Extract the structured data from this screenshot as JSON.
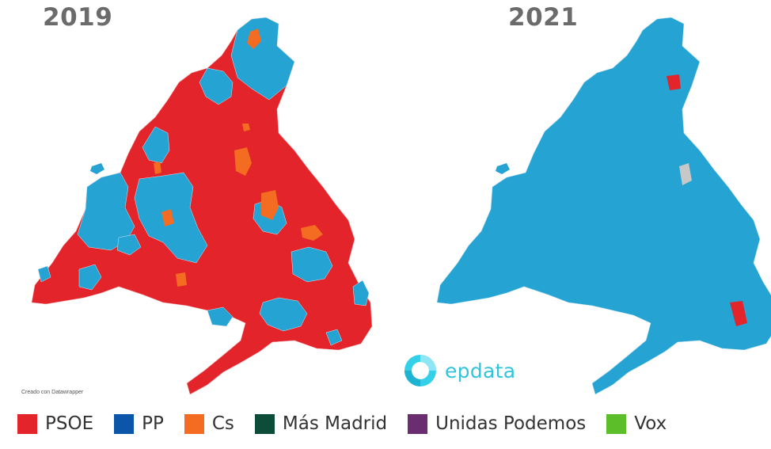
{
  "maps": [
    {
      "year": "2019",
      "base_color": "#e3242b"
    },
    {
      "year": "2021",
      "base_color": "#25a3d3"
    }
  ],
  "credit": "Creado con Datawrapper",
  "brand": {
    "name": "epdata",
    "color": "#2fc4de",
    "icon": "epdata-logo-icon"
  },
  "legend": [
    {
      "label": "PSOE",
      "color": "#e3242b"
    },
    {
      "label": "PP",
      "color": "#0b56a8"
    },
    {
      "label": "Cs",
      "color": "#f36c21"
    },
    {
      "label": "Más Madrid",
      "color": "#0e4c3a"
    },
    {
      "label": "Unidas Podemos",
      "color": "#6b2d6f"
    },
    {
      "label": "Vox",
      "color": "#5cbf2a"
    }
  ],
  "other_colors": {
    "pp_light": "#25a3d3",
    "no_data": "#c8c8c8"
  }
}
